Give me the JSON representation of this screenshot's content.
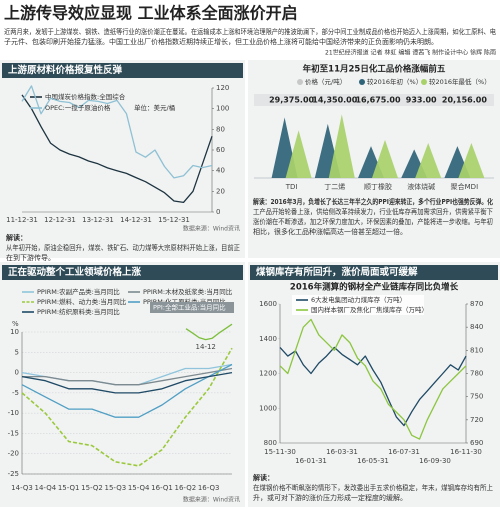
{
  "header": {
    "title": "上游传导效应显现 工业体系全面涨价开启",
    "intro": [
      "近两月来，发轫于上游煤炭、钢铁、造纸等行业的涨价潮正在蔓延。在运输成本上涨和环境治理限产的推波助澜下，部分中间工业制成品价格也开始迈入上涨周期，如化工原料、电",
      "子元件、包装印刷开始接力猛涨。中国工业出厂价格指数近期持续正增长，但工业品价格上涨将可能给中国经济带来的正负面影响仍未明朗。"
    ],
    "credit": "21世纪经济报道 记者 林虹 编辑 谭茜飞 制作设计中心 徐辉 陈雨"
  },
  "chart_data": [
    {
      "type": "line",
      "title": "上游原材料价格报复性反弹",
      "categories": [
        "11-12-31",
        null,
        null,
        null,
        "12-12-31",
        null,
        null,
        null,
        "13-12-31",
        null,
        null,
        null,
        "14-12-31",
        null,
        null,
        null,
        "15-12-31",
        null,
        null,
        null,
        null
      ],
      "series": [
        {
          "name": "中国煤炭价格指数:全国综合",
          "color": "#1d3440",
          "axis": "y",
          "values": [
            195,
            185,
            172,
            160,
            155,
            152,
            150,
            147,
            145,
            142,
            140,
            138,
            135,
            132,
            128,
            124,
            118,
            117,
            125,
            145,
            165
          ]
        },
        {
          "name": "OPEC:一揽子原油价格",
          "color": "#8fc1d4",
          "axis": "y2",
          "values": [
            107,
            122,
            95,
            110,
            107,
            106,
            101,
            108,
            107,
            105,
            108,
            95,
            58,
            53,
            60,
            44,
            33,
            35,
            45,
            43,
            45
          ]
        }
      ],
      "unit_note": "单位：美元/桶",
      "ylim": [
        110,
        200
      ],
      "y2lim": [
        0,
        120
      ],
      "y2ticks": [
        0,
        20,
        40,
        60,
        80,
        100,
        120
      ],
      "source": "数据来源：Wind资讯",
      "note": [
        "解读：",
        "从年初开始，原油企稳回升，煤炭、铁矿石、动力煤等大宗原材料开始上涨，目前正",
        "在到下游传导。"
      ]
    },
    {
      "type": "triangle",
      "title": "年初至11月25日化工品价格涨幅前五",
      "categories": [
        "TDI",
        "丁二烯",
        "顺丁橡胶",
        "液体烧碱",
        "聚合MDI"
      ],
      "prices": {
        "name": "价格（元/吨）",
        "color": "#c8c8c8",
        "values": [
          29375,
          14350,
          16675,
          933,
          20156
        ],
        "value_labels": [
          "29,375.00",
          "14,350.00",
          "16,675.00",
          "933.00",
          "20,156.00"
        ]
      },
      "series": [
        {
          "name": "较2016年初（%）",
          "color": "#2f6378",
          "values": [
            190,
            170,
            100,
            90,
            100
          ]
        },
        {
          "name": "较2016年最低（%）",
          "color": "#a9d16a",
          "values": [
            150,
            200,
            120,
            110,
            110
          ]
        }
      ],
      "ylim": [
        0,
        220
      ],
      "note": [
        "解读：2016年3月，负增长了长达三年半之久的PPI迎来转正，多个行业PPI也强势反弹。化",
        "工产品开始轮番上涨，供给侧改革持续发力，行业低库存再加需求回升，供需紧平衡下",
        "涨价潮在不断渗透，加之环保力度加大，环保因素的叠加，产能将进一步收缩。与年初",
        "相比，很多化工品种涨幅高达一倍甚至超过一倍。"
      ]
    },
    {
      "type": "line",
      "title": "正在驱动整个工业领域价格上涨",
      "categories": [
        "14-Q3",
        "14-Q4",
        "15-Q1",
        "15-Q2",
        "15-Q3",
        "15-Q4",
        "16-Q1",
        "16-Q2",
        "16-Q3",
        null
      ],
      "series": [
        {
          "name": "PPIRM:农副产品类:当月同比",
          "color": "#8fc4dc",
          "values": [
            0,
            -1,
            -2,
            -2,
            -3,
            -3,
            -1,
            1,
            1,
            2
          ]
        },
        {
          "name": "PPIRM:木材及纸浆类:当月同比",
          "color": "#7d8a8f",
          "values": [
            -1,
            -1,
            -2,
            -2,
            -3,
            -3,
            -2,
            -1,
            0,
            1
          ]
        },
        {
          "name": "PPIRM:燃料、动力类:当月同比",
          "color": "#9bc93c",
          "dash": true,
          "values": [
            -5,
            -10,
            -17,
            -18,
            -22,
            -23,
            -19,
            -11,
            -4,
            6
          ]
        },
        {
          "name": "PPIRM:化工原料类:当月同比",
          "color": "#4f9fc4",
          "values": [
            -3,
            -6,
            -9,
            -9,
            -11,
            -11,
            -8,
            -4,
            -1,
            2
          ]
        },
        {
          "name": "PPIRM:纺织原料类:当月同比",
          "color": "#1f4a66",
          "values": [
            -1,
            -2,
            -4,
            -4,
            -5,
            -5,
            -4,
            -2,
            -1,
            0
          ]
        }
      ],
      "y_label": "%",
      "ylim": [
        -25,
        10
      ],
      "yticks": [
        10,
        5,
        0,
        -5,
        -10,
        -15,
        -20,
        -25
      ],
      "grid": true,
      "source": "数据来源：Wind资讯"
    },
    {
      "type": "line",
      "title": "PPI:全部工业品:当月同比",
      "categories": [
        null,
        null,
        null,
        "14-12",
        null,
        null,
        null,
        null
      ],
      "series": [
        {
          "name": null,
          "color": "#7cbf3b",
          "values": [
            -1,
            -3,
            -5,
            -5.9,
            -5.3,
            -3,
            -1,
            1
          ]
        }
      ],
      "ylim": [
        -7,
        2
      ]
    },
    {
      "type": "line",
      "title": "煤钢库存有所回升，涨价局面或可缓解",
      "subtitle": "2016年测算的钢材全产业链库存同比负增长",
      "categories": [
        "15-11-30",
        null,
        null,
        null,
        "16-01-31",
        null,
        null,
        null,
        "16-03-31",
        null,
        null,
        null,
        "16-05-31",
        null,
        null,
        null,
        "16-07-31",
        null,
        null,
        null,
        "16-09-30",
        null,
        null,
        null,
        "16-11-30"
      ],
      "series": [
        {
          "name": "6大发电集团动力煤库存（万吨）",
          "color": "#1f4a66",
          "axis": "y",
          "values": [
            1350,
            1300,
            1330,
            1250,
            1200,
            1260,
            1300,
            1350,
            1310,
            1280,
            1250,
            1300,
            1220,
            1150,
            1050,
            950,
            900,
            980,
            1050,
            1100,
            1150,
            1200,
            1250,
            1220,
            1300
          ]
        },
        {
          "name": "国内样本钢厂及焦化厂焦煤库存（万吨）",
          "color": "#8cc63f",
          "axis": "y2",
          "values": [
            790,
            780,
            810,
            840,
            850,
            830,
            820,
            810,
            830,
            820,
            800,
            790,
            770,
            760,
            740,
            730,
            720,
            700,
            695,
            720,
            740,
            760,
            770,
            780,
            790
          ]
        }
      ],
      "ylim": [
        800,
        1600
      ],
      "yticks": [
        1600,
        1400,
        1200,
        1000,
        800
      ],
      "y2lim": [
        690,
        870
      ],
      "y2ticks": [
        870,
        840,
        810,
        780,
        750,
        720,
        690
      ],
      "note": [
        "解读：",
        "在煤钢价格不断飙涨的情形下，发改委出手五求价格稳定，年末，煤钢库存均有所上",
        "升，或可对下游的涨价压力形成一定程度的缓解。"
      ]
    }
  ]
}
